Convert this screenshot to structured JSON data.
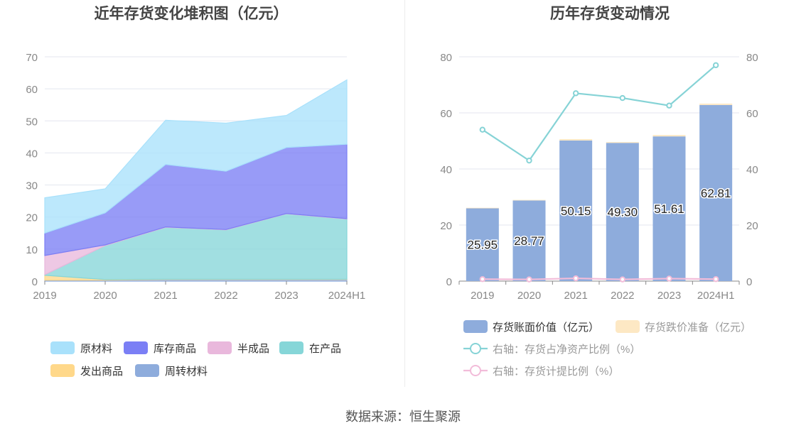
{
  "source_note": "数据来源：恒生聚源",
  "colors": {
    "raw_material": "#a9e1fb",
    "finished_goods": "#7b7ff5",
    "semi_finished": "#e9b8dc",
    "wip": "#86d6d8",
    "dispatched": "#ffd88a",
    "turnover": "#8eacdc",
    "book_value": "#8eacdc",
    "impairment": "#fde8c4",
    "net_asset_ratio": "#86d3d6",
    "provision_ratio": "#f2bcd9",
    "grid": "#e3e6ef",
    "axis_text": "#888888"
  },
  "chart_data": [
    {
      "type": "area",
      "stacked": true,
      "title": "近年存货变化堆积图（亿元）",
      "categories": [
        "2019",
        "2020",
        "2021",
        "2022",
        "2023",
        "2024H1"
      ],
      "ylim": [
        0,
        70
      ],
      "yticks": [
        "0",
        "10",
        "20",
        "30",
        "40",
        "50",
        "60",
        "70"
      ],
      "grid": true,
      "legend_position": "bottom",
      "series": [
        {
          "name": "周转材料",
          "key": "turnover",
          "values": [
            0.3,
            0.3,
            0.5,
            0.5,
            0.5,
            0.5
          ]
        },
        {
          "name": "发出商品",
          "key": "dispatched",
          "values": [
            1.5,
            0.2,
            0.1,
            0.1,
            0.1,
            0.1
          ]
        },
        {
          "name": "在产品",
          "key": "wip",
          "values": [
            0.2,
            10.6,
            16.2,
            15.4,
            20.4,
            18.8
          ]
        },
        {
          "name": "半成品",
          "key": "semi_finished",
          "values": [
            6.0,
            0.2,
            0.1,
            0.1,
            0.1,
            0.1
          ]
        },
        {
          "name": "库存商品",
          "key": "finished_goods",
          "values": [
            7.0,
            10.0,
            19.5,
            18.2,
            20.6,
            23.2
          ]
        },
        {
          "name": "原材料",
          "key": "raw_material",
          "values": [
            11.0,
            7.5,
            13.8,
            15.0,
            10.0,
            20.1
          ]
        }
      ],
      "legend_rows": [
        [
          {
            "name": "原材料",
            "key": "raw_material"
          },
          {
            "name": "库存商品",
            "key": "finished_goods"
          },
          {
            "name": "半成品",
            "key": "semi_finished"
          },
          {
            "name": "在产品",
            "key": "wip"
          }
        ],
        [
          {
            "name": "发出商品",
            "key": "dispatched"
          },
          {
            "name": "周转材料",
            "key": "turnover"
          }
        ]
      ]
    },
    {
      "type": "bar",
      "stacked": true,
      "title": "历年存货变动情况",
      "categories": [
        "2019",
        "2020",
        "2021",
        "2022",
        "2023",
        "2024H1"
      ],
      "ylim": [
        0,
        80
      ],
      "yticks": [
        "0",
        "20",
        "40",
        "60",
        "80"
      ],
      "y2lim": [
        0,
        80
      ],
      "y2ticks": [
        "0",
        "20",
        "40",
        "60",
        "80"
      ],
      "grid": true,
      "legend_position": "bottom",
      "bar_series": [
        {
          "name": "存货账面价值（亿元）",
          "key": "book_value",
          "values": [
            25.95,
            28.77,
            50.15,
            49.3,
            51.61,
            62.81
          ],
          "labels": [
            "25.95",
            "28.77",
            "50.15",
            "49.30",
            "51.61",
            "62.81"
          ]
        },
        {
          "name": "存货跌价准备（亿元）",
          "key": "impairment",
          "values": [
            0.2,
            0.2,
            0.5,
            0.3,
            0.5,
            0.5
          ]
        }
      ],
      "line_series": [
        {
          "name": "右轴：存货占净资产比例（%）",
          "key": "net_asset_ratio",
          "axis": "right",
          "values": [
            54.0,
            43.0,
            67.0,
            65.3,
            62.6,
            77.0
          ]
        },
        {
          "name": "右轴：存货计提比例（%）",
          "key": "provision_ratio",
          "axis": "right",
          "values": [
            0.7,
            0.6,
            1.0,
            0.6,
            0.9,
            0.7
          ]
        }
      ]
    }
  ]
}
